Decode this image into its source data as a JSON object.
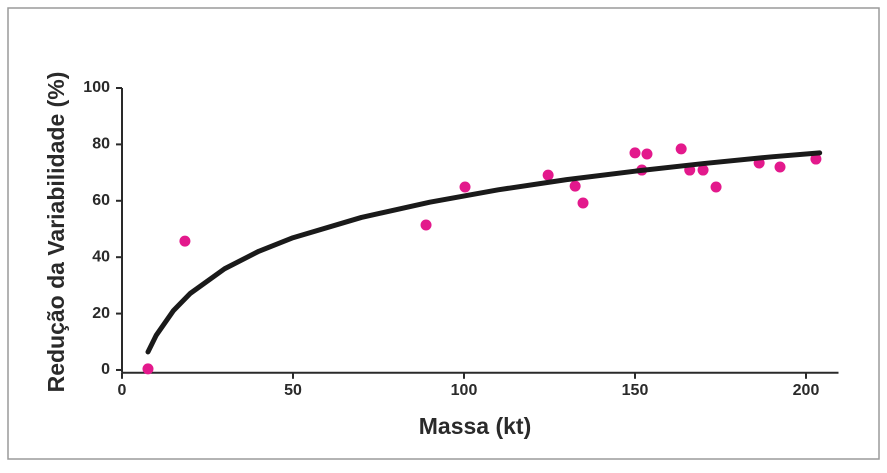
{
  "chart_data": {
    "type": "scatter",
    "x_label": "Massa (kt)",
    "y_label": "Redução da Variabilidade (%)",
    "xlim": [
      0,
      209.5
    ],
    "ylim": [
      -1,
      100
    ],
    "xticks": [
      0,
      50,
      100,
      150,
      200
    ],
    "yticks": [
      0,
      20,
      40,
      60,
      80,
      100
    ],
    "series": [
      {
        "kind": "points",
        "color": "#e3198c",
        "x": [
          7.6,
          18.4,
          88.9,
          100.3,
          124.6,
          132.5,
          134.8,
          150,
          153.5,
          152,
          163.5,
          166,
          169.9,
          173.7,
          186.3,
          192.4,
          202.9
        ],
        "values": [
          0.4,
          45.7,
          51.4,
          64.9,
          69.1,
          65.2,
          59.2,
          77,
          76.6,
          70.9,
          78.4,
          70.9,
          70.9,
          64.9,
          73.4,
          72,
          74.8
        ]
      },
      {
        "kind": "line",
        "color": "#1a1a1a",
        "x": [
          7.6,
          10,
          15,
          20,
          30,
          40,
          50,
          70,
          90,
          110,
          130,
          150,
          170,
          190,
          204
        ],
        "values": [
          6.4,
          12.3,
          21.0,
          27.2,
          35.9,
          42.1,
          46.9,
          54.1,
          59.5,
          63.9,
          67.5,
          70.5,
          73.2,
          75.6,
          77.0
        ]
      }
    ]
  }
}
